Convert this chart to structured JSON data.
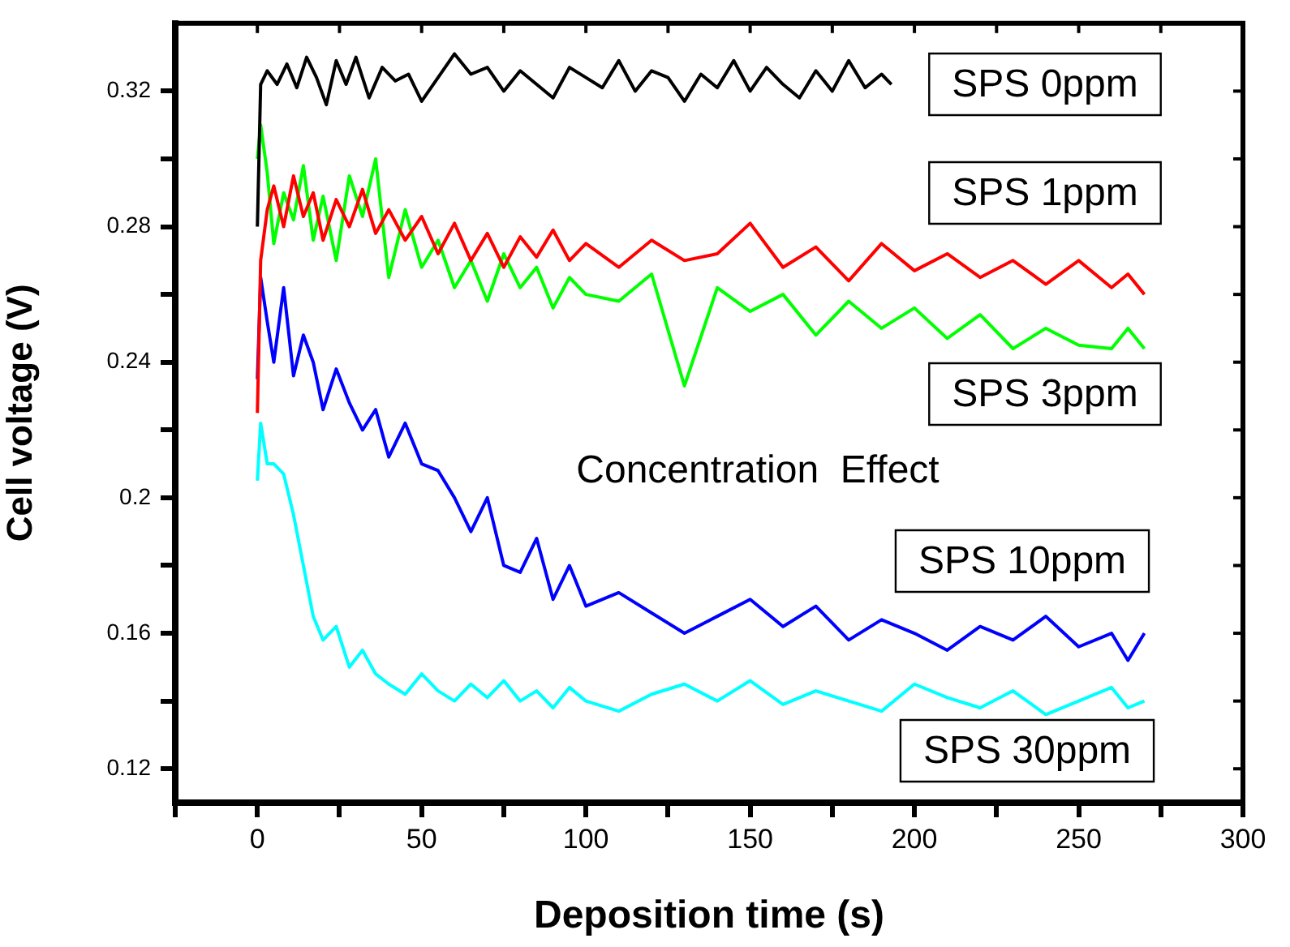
{
  "chart_data": {
    "type": "line",
    "xlabel": "Deposition time (s)",
    "ylabel": "Cell voltage (V)",
    "annotations": [
      "Concentration  Effect"
    ],
    "xlim": [
      -25,
      300
    ],
    "ylim": [
      0.11,
      0.34
    ],
    "xticks": [
      {
        "value": -25,
        "label": null
      },
      0,
      {
        "value": 25,
        "label": null
      },
      50,
      {
        "value": 75,
        "label": null
      },
      100,
      {
        "value": 125,
        "label": null
      },
      150,
      {
        "value": 175,
        "label": null
      },
      200,
      {
        "value": 225,
        "label": null
      },
      250,
      {
        "value": 275,
        "label": null
      },
      300
    ],
    "yticks": [
      0.12,
      {
        "value": 0.14,
        "label": null
      },
      0.16,
      {
        "value": 0.18,
        "label": null
      },
      0.2,
      {
        "value": 0.22,
        "label": null
      },
      0.24,
      {
        "value": 0.26,
        "label": null
      },
      0.28,
      {
        "value": 0.3,
        "label": null
      },
      0.32
    ],
    "grid": false,
    "legend": "right",
    "marker": "none",
    "line_style": "solid",
    "series": [
      {
        "name": "SPS 0ppm",
        "color": "#000000",
        "x": [
          0,
          1,
          3,
          6,
          9,
          12,
          15,
          18,
          21,
          24,
          27,
          30,
          34,
          38,
          42,
          46,
          50,
          55,
          60,
          65,
          70,
          75,
          80,
          85,
          90,
          95,
          100,
          105,
          110,
          115,
          120,
          125,
          130,
          135,
          140,
          145,
          150,
          155,
          160,
          165,
          170,
          175,
          180,
          185,
          190,
          193
        ],
        "values": [
          0.28,
          0.322,
          0.326,
          0.322,
          0.328,
          0.321,
          0.33,
          0.324,
          0.316,
          0.329,
          0.322,
          0.33,
          0.318,
          0.327,
          0.323,
          0.325,
          0.317,
          0.324,
          0.331,
          0.325,
          0.327,
          0.32,
          0.326,
          0.322,
          0.318,
          0.327,
          0.324,
          0.321,
          0.329,
          0.32,
          0.326,
          0.324,
          0.317,
          0.325,
          0.321,
          0.329,
          0.32,
          0.327,
          0.322,
          0.318,
          0.326,
          0.32,
          0.329,
          0.321,
          0.325,
          0.322
        ]
      },
      {
        "name": "SPS 1ppm",
        "color": "#ff0000",
        "x": [
          0,
          1,
          3,
          5,
          8,
          11,
          14,
          17,
          20,
          24,
          28,
          32,
          36,
          40,
          45,
          50,
          55,
          60,
          65,
          70,
          75,
          80,
          85,
          90,
          95,
          100,
          110,
          120,
          130,
          140,
          150,
          160,
          170,
          180,
          190,
          200,
          210,
          220,
          230,
          240,
          250,
          260,
          265,
          270
        ],
        "values": [
          0.225,
          0.27,
          0.285,
          0.292,
          0.28,
          0.295,
          0.283,
          0.29,
          0.276,
          0.288,
          0.28,
          0.291,
          0.278,
          0.285,
          0.276,
          0.283,
          0.272,
          0.281,
          0.27,
          0.278,
          0.268,
          0.277,
          0.271,
          0.279,
          0.27,
          0.275,
          0.268,
          0.276,
          0.27,
          0.272,
          0.281,
          0.268,
          0.274,
          0.264,
          0.275,
          0.267,
          0.272,
          0.265,
          0.27,
          0.263,
          0.27,
          0.262,
          0.266,
          0.26
        ]
      },
      {
        "name": "SPS 3ppm",
        "color": "#00ff00",
        "x": [
          0,
          1,
          3,
          5,
          8,
          11,
          14,
          17,
          20,
          24,
          28,
          32,
          36,
          40,
          45,
          50,
          55,
          60,
          65,
          70,
          75,
          80,
          85,
          90,
          95,
          100,
          110,
          120,
          130,
          140,
          150,
          160,
          170,
          180,
          190,
          200,
          210,
          220,
          230,
          240,
          250,
          260,
          265,
          270
        ],
        "values": [
          0.3,
          0.31,
          0.296,
          0.275,
          0.29,
          0.282,
          0.298,
          0.276,
          0.289,
          0.27,
          0.295,
          0.283,
          0.3,
          0.265,
          0.285,
          0.268,
          0.276,
          0.262,
          0.27,
          0.258,
          0.272,
          0.262,
          0.268,
          0.256,
          0.265,
          0.26,
          0.258,
          0.266,
          0.233,
          0.262,
          0.255,
          0.26,
          0.248,
          0.258,
          0.25,
          0.256,
          0.247,
          0.254,
          0.244,
          0.25,
          0.245,
          0.244,
          0.25,
          0.244
        ]
      },
      {
        "name": "SPS 10ppm",
        "color": "#0000ff",
        "x": [
          0,
          1,
          3,
          5,
          8,
          11,
          14,
          17,
          20,
          24,
          28,
          32,
          36,
          40,
          45,
          50,
          55,
          60,
          65,
          70,
          75,
          80,
          85,
          90,
          95,
          100,
          110,
          120,
          130,
          140,
          150,
          160,
          170,
          180,
          190,
          200,
          210,
          220,
          230,
          240,
          250,
          260,
          265,
          270
        ],
        "values": [
          0.235,
          0.265,
          0.252,
          0.24,
          0.262,
          0.236,
          0.248,
          0.24,
          0.226,
          0.238,
          0.228,
          0.22,
          0.226,
          0.212,
          0.222,
          0.21,
          0.208,
          0.2,
          0.19,
          0.2,
          0.18,
          0.178,
          0.188,
          0.17,
          0.18,
          0.168,
          0.172,
          0.166,
          0.16,
          0.165,
          0.17,
          0.162,
          0.168,
          0.158,
          0.164,
          0.16,
          0.155,
          0.162,
          0.158,
          0.165,
          0.156,
          0.16,
          0.152,
          0.16
        ]
      },
      {
        "name": "SPS 30ppm",
        "color": "#00ffff",
        "x": [
          0,
          1,
          3,
          5,
          8,
          11,
          14,
          17,
          20,
          24,
          28,
          32,
          36,
          40,
          45,
          50,
          55,
          60,
          65,
          70,
          75,
          80,
          85,
          90,
          95,
          100,
          110,
          120,
          130,
          140,
          150,
          160,
          170,
          180,
          190,
          200,
          210,
          220,
          230,
          240,
          250,
          260,
          265,
          270
        ],
        "values": [
          0.205,
          0.222,
          0.21,
          0.21,
          0.207,
          0.195,
          0.18,
          0.165,
          0.158,
          0.162,
          0.15,
          0.155,
          0.148,
          0.145,
          0.142,
          0.148,
          0.143,
          0.14,
          0.145,
          0.141,
          0.146,
          0.14,
          0.143,
          0.138,
          0.144,
          0.14,
          0.137,
          0.142,
          0.145,
          0.14,
          0.146,
          0.139,
          0.143,
          0.14,
          0.137,
          0.145,
          0.141,
          0.138,
          0.143,
          0.136,
          0.14,
          0.144,
          0.138,
          0.14
        ]
      }
    ]
  }
}
